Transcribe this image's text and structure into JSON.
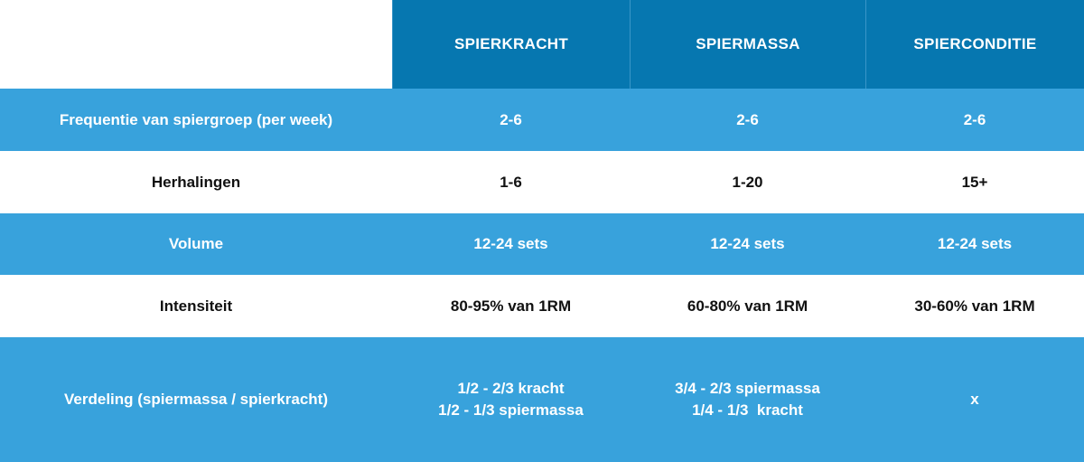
{
  "columns": [
    "SPIERKRACHT",
    "SPIERMASSA",
    "SPIERCONDITIE"
  ],
  "rows": [
    {
      "label": "Frequentie van spiergroep (per week)",
      "values": [
        "2-6",
        "2-6",
        "2-6"
      ]
    },
    {
      "label": "Herhalingen",
      "values": [
        "1-6",
        "1-20",
        "15+"
      ]
    },
    {
      "label": "Volume",
      "values": [
        "12-24 sets",
        "12-24 sets",
        "12-24 sets"
      ]
    },
    {
      "label": "Intensiteit",
      "values": [
        "80-95% van 1RM",
        "60-80% van 1RM",
        "30-60% van 1RM"
      ]
    },
    {
      "label": "Verdeling (spiermassa / spierkracht)",
      "values": [
        [
          "1/2 - 2/3 kracht",
          "1/2 - 1/3 spiermassa"
        ],
        [
          "3/4 - 2/3 spiermassa",
          "1/4 - 1/3  kracht"
        ],
        [
          "x"
        ]
      ]
    }
  ],
  "colors": {
    "header": "#0677b0",
    "row_blue": "#38a2dc",
    "row_white": "#ffffff"
  }
}
